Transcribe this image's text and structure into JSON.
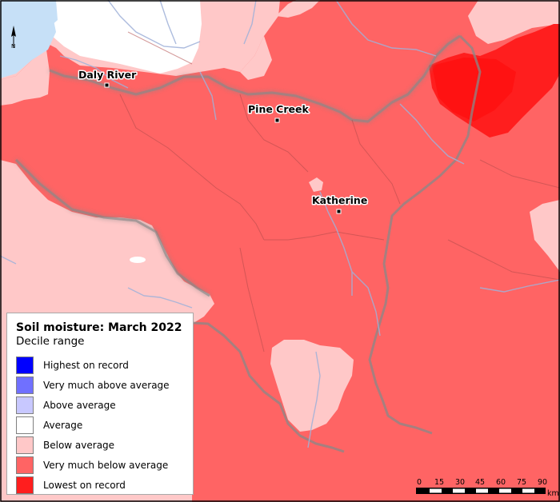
{
  "map": {
    "towns": [
      {
        "name": "Daly River"
      },
      {
        "name": "Pine Creek"
      },
      {
        "name": "Katherine"
      }
    ],
    "north_arrow": {
      "label": "N"
    },
    "scale_bar": {
      "ticks": [
        "0",
        "15",
        "30",
        "45",
        "60",
        "75",
        "90"
      ],
      "unit": "km"
    }
  },
  "legend": {
    "title": "Soil moisture: March 2022",
    "subtitle": "Decile range",
    "items": [
      {
        "label": "Highest on record",
        "color": "#0000ff"
      },
      {
        "label": "Very much above average",
        "color": "#7070ff"
      },
      {
        "label": "Above average",
        "color": "#c8c8ff"
      },
      {
        "label": "Average",
        "color": "#ffffff"
      },
      {
        "label": "Below average",
        "color": "#ffc8c8"
      },
      {
        "label": "Very much below average",
        "color": "#ff6464"
      },
      {
        "label": "Lowest on record",
        "color": "#ff1e1e"
      }
    ]
  }
}
